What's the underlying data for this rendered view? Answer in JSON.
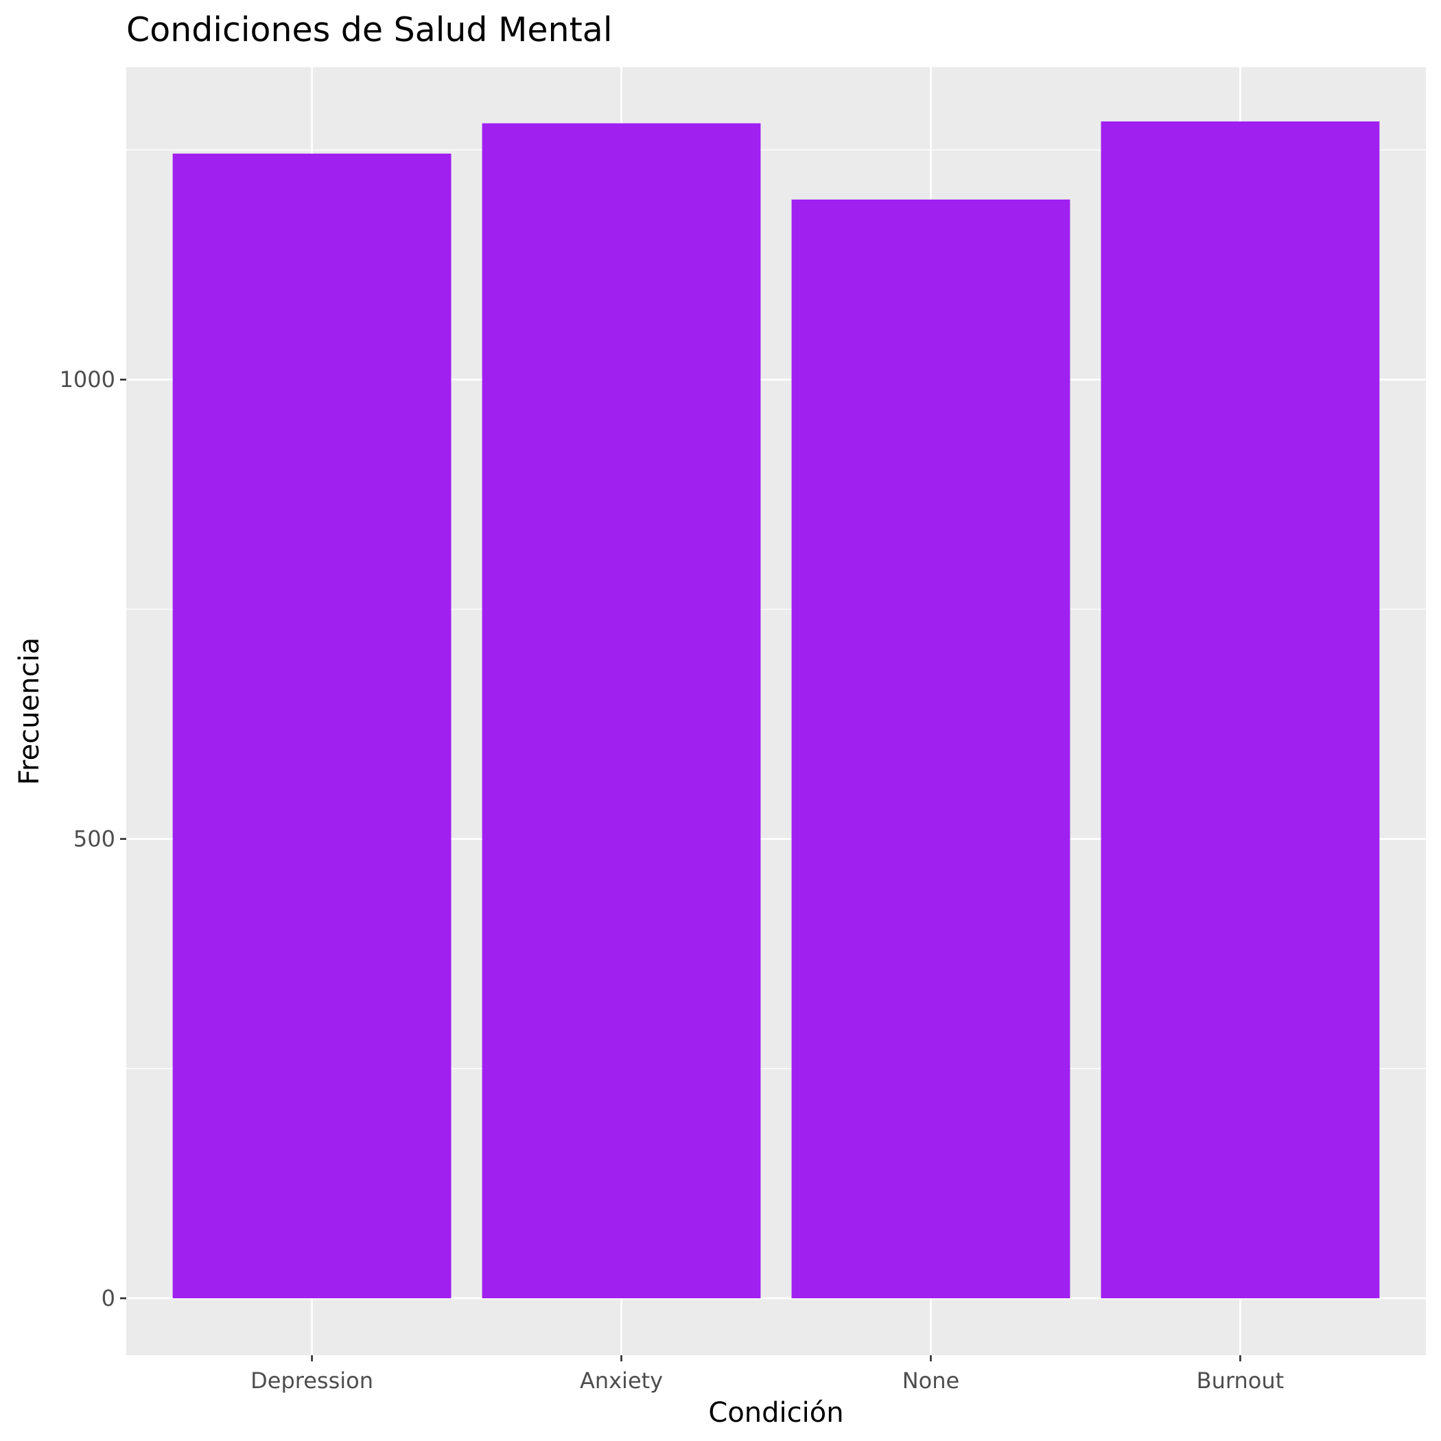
{
  "chart_data": {
    "type": "bar",
    "title": "Condiciones de Salud Mental",
    "xlabel": "Condición",
    "ylabel": "Frecuencia",
    "categories": [
      "Depression",
      "Anxiety",
      "None",
      "Burnout"
    ],
    "values": [
      1246,
      1279,
      1196,
      1281
    ],
    "ylim": [
      -62,
      1340
    ],
    "yticks": [
      0,
      500,
      1000
    ],
    "yticks_minor": [
      250,
      750,
      1250
    ],
    "grid": true,
    "legend": "none",
    "colors": {
      "bar": "#A020F0",
      "panel_background": "#EBEBEB",
      "grid": "#FFFFFF",
      "tick_label": "#4D4D4D",
      "axis_tick": "#333333"
    }
  }
}
